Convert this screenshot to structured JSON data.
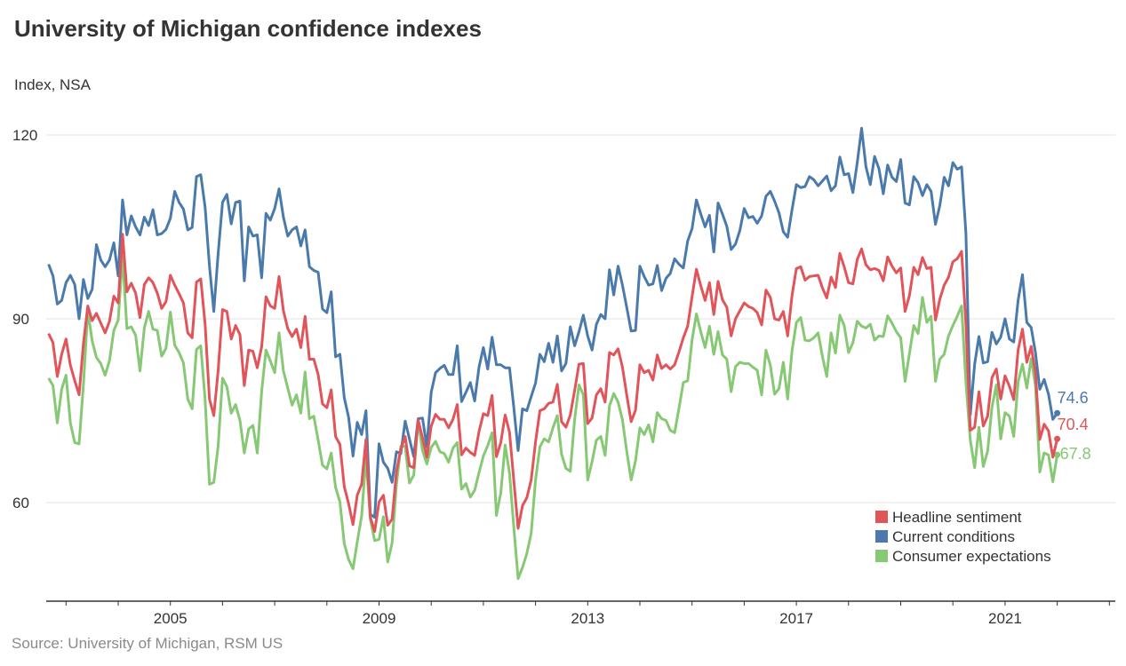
{
  "chart_data": {
    "type": "line",
    "title": "University of Michigan confidence indexes",
    "ylabel": "Index, NSA",
    "source": "Source: University of Michigan, RSM US",
    "ylim": [
      44,
      123
    ],
    "xlim": [
      2002.62,
      2023.1
    ],
    "y_ticks": [
      60,
      90,
      120
    ],
    "x_tick_labels": [
      "2005",
      "2009",
      "2013",
      "2017",
      "2021"
    ],
    "grid": "horizontal",
    "legend_position": "bottom-right",
    "x": [
      "2002-08",
      "2002-09",
      "2002-10",
      "2002-11",
      "2002-12",
      "2003-01",
      "2003-02",
      "2003-03",
      "2003-04",
      "2003-05",
      "2003-06",
      "2003-07",
      "2003-08",
      "2003-09",
      "2003-10",
      "2003-11",
      "2003-12",
      "2004-01",
      "2004-02",
      "2004-03",
      "2004-04",
      "2004-05",
      "2004-06",
      "2004-07",
      "2004-08",
      "2004-09",
      "2004-10",
      "2004-11",
      "2004-12",
      "2005-01",
      "2005-02",
      "2005-03",
      "2005-04",
      "2005-05",
      "2005-06",
      "2005-07",
      "2005-08",
      "2005-09",
      "2005-10",
      "2005-11",
      "2005-12",
      "2006-01",
      "2006-02",
      "2006-03",
      "2006-04",
      "2006-05",
      "2006-06",
      "2006-07",
      "2006-08",
      "2006-09",
      "2006-10",
      "2006-11",
      "2006-12",
      "2007-01",
      "2007-02",
      "2007-03",
      "2007-04",
      "2007-05",
      "2007-06",
      "2007-07",
      "2007-08",
      "2007-09",
      "2007-10",
      "2007-11",
      "2007-12",
      "2008-01",
      "2008-02",
      "2008-03",
      "2008-04",
      "2008-05",
      "2008-06",
      "2008-07",
      "2008-08",
      "2008-09",
      "2008-10",
      "2008-11",
      "2008-12",
      "2009-01",
      "2009-02",
      "2009-03",
      "2009-04",
      "2009-05",
      "2009-06",
      "2009-07",
      "2009-08",
      "2009-09",
      "2009-10",
      "2009-11",
      "2009-12",
      "2010-01",
      "2010-02",
      "2010-03",
      "2010-04",
      "2010-05",
      "2010-06",
      "2010-07",
      "2010-08",
      "2010-09",
      "2010-10",
      "2010-11",
      "2010-12",
      "2011-01",
      "2011-02",
      "2011-03",
      "2011-04",
      "2011-05",
      "2011-06",
      "2011-07",
      "2011-08",
      "2011-09",
      "2011-10",
      "2011-11",
      "2011-12",
      "2012-01",
      "2012-02",
      "2012-03",
      "2012-04",
      "2012-05",
      "2012-06",
      "2012-07",
      "2012-08",
      "2012-09",
      "2012-10",
      "2012-11",
      "2012-12",
      "2013-01",
      "2013-02",
      "2013-03",
      "2013-04",
      "2013-05",
      "2013-06",
      "2013-07",
      "2013-08",
      "2013-09",
      "2013-10",
      "2013-11",
      "2013-12",
      "2014-01",
      "2014-02",
      "2014-03",
      "2014-04",
      "2014-05",
      "2014-06",
      "2014-07",
      "2014-08",
      "2014-09",
      "2014-10",
      "2014-11",
      "2014-12",
      "2015-01",
      "2015-02",
      "2015-03",
      "2015-04",
      "2015-05",
      "2015-06",
      "2015-07",
      "2015-08",
      "2015-09",
      "2015-10",
      "2015-11",
      "2015-12",
      "2016-01",
      "2016-02",
      "2016-03",
      "2016-04",
      "2016-05",
      "2016-06",
      "2016-07",
      "2016-08",
      "2016-09",
      "2016-10",
      "2016-11",
      "2016-12",
      "2017-01",
      "2017-02",
      "2017-03",
      "2017-04",
      "2017-05",
      "2017-06",
      "2017-07",
      "2017-08",
      "2017-09",
      "2017-10",
      "2017-11",
      "2017-12",
      "2018-01",
      "2018-02",
      "2018-03",
      "2018-04",
      "2018-05",
      "2018-06",
      "2018-07",
      "2018-08",
      "2018-09",
      "2018-10",
      "2018-11",
      "2018-12",
      "2019-01",
      "2019-02",
      "2019-03",
      "2019-04",
      "2019-05",
      "2019-06",
      "2019-07",
      "2019-08",
      "2019-09",
      "2019-10",
      "2019-11",
      "2019-12",
      "2020-01",
      "2020-02",
      "2020-03",
      "2020-04",
      "2020-05",
      "2020-06",
      "2020-07",
      "2020-08",
      "2020-09",
      "2020-10",
      "2020-11",
      "2020-12",
      "2021-01",
      "2021-02",
      "2021-03",
      "2021-04",
      "2021-05",
      "2021-06",
      "2021-07",
      "2021-08",
      "2021-09",
      "2021-10",
      "2021-11",
      "2021-12"
    ],
    "series": [
      {
        "name": "Headline sentiment",
        "color": "#e0545a",
        "end_label": "70.4",
        "values": [
          87.6,
          86.1,
          80.6,
          84.2,
          86.7,
          82.4,
          79.9,
          77.6,
          86.0,
          92.1,
          89.7,
          90.9,
          89.3,
          87.7,
          89.6,
          93.7,
          92.6,
          103.8,
          94.4,
          95.8,
          94.2,
          90.2,
          95.6,
          96.7,
          95.9,
          94.2,
          91.7,
          92.8,
          97.1,
          95.5,
          94.1,
          92.6,
          87.7,
          86.9,
          96.0,
          96.5,
          89.1,
          76.9,
          74.2,
          81.6,
          91.5,
          91.2,
          86.7,
          88.9,
          87.4,
          79.1,
          84.9,
          84.7,
          82.0,
          85.4,
          93.6,
          92.1,
          91.7,
          96.9,
          91.3,
          88.4,
          87.1,
          88.3,
          85.3,
          90.4,
          83.4,
          83.4,
          80.9,
          76.1,
          75.5,
          78.4,
          70.8,
          69.5,
          62.6,
          59.8,
          56.4,
          61.2,
          63.0,
          70.3,
          57.6,
          55.3,
          60.1,
          61.2,
          56.3,
          57.3,
          65.1,
          68.7,
          70.8,
          66.0,
          65.7,
          73.5,
          70.6,
          67.4,
          72.5,
          74.4,
          73.6,
          73.6,
          72.2,
          73.6,
          76.0,
          67.8,
          68.9,
          68.2,
          67.7,
          71.6,
          74.5,
          74.2,
          77.5,
          67.5,
          69.8,
          74.3,
          71.5,
          63.7,
          55.8,
          59.5,
          60.8,
          63.7,
          69.9,
          75.0,
          75.3,
          76.2,
          76.4,
          79.3,
          73.2,
          72.3,
          74.3,
          78.3,
          82.6,
          82.7,
          72.9,
          73.8,
          77.6,
          78.6,
          76.4,
          84.5,
          84.1,
          85.1,
          82.1,
          77.5,
          73.2,
          75.1,
          82.5,
          81.2,
          81.6,
          80.0,
          84.1,
          81.9,
          82.5,
          81.8,
          82.5,
          84.6,
          86.9,
          88.8,
          93.6,
          98.1,
          95.4,
          93.0,
          95.9,
          90.7,
          96.1,
          93.1,
          91.9,
          87.2,
          90.0,
          91.3,
          92.6,
          92.0,
          91.7,
          91.0,
          89.0,
          94.7,
          93.5,
          90.0,
          89.8,
          91.2,
          87.2,
          93.8,
          98.2,
          98.5,
          96.3,
          96.9,
          97.0,
          97.1,
          95.0,
          93.4,
          96.8,
          95.1,
          100.7,
          98.5,
          95.9,
          95.7,
          99.7,
          101.4,
          98.8,
          98.0,
          98.2,
          97.9,
          96.2,
          100.1,
          98.6,
          97.5,
          98.3,
          91.2,
          93.8,
          98.4,
          97.2,
          100.0,
          98.2,
          98.4,
          89.8,
          93.2,
          95.5,
          96.8,
          99.3,
          99.8,
          101.0,
          89.1,
          71.8,
          72.3,
          78.1,
          72.5,
          74.1,
          80.4,
          81.8,
          76.9,
          80.7,
          79.0,
          76.8,
          84.9,
          88.3,
          82.9,
          85.5,
          81.2,
          70.3,
          72.8,
          71.7,
          67.4,
          70.4
        ]
      },
      {
        "name": "Current conditions",
        "color": "#4a7aab",
        "end_label": "74.6",
        "values": [
          98.9,
          97.0,
          92.4,
          93.0,
          95.9,
          97.1,
          95.6,
          90.0,
          96.4,
          93.3,
          94.8,
          102.1,
          99.6,
          98.5,
          99.6,
          102.4,
          97.0,
          109.4,
          103.7,
          106.8,
          105.0,
          103.7,
          106.6,
          105.2,
          107.8,
          103.7,
          103.9,
          104.6,
          106.4,
          110.8,
          109.0,
          107.9,
          104.5,
          104.9,
          113.2,
          113.5,
          108.2,
          98.6,
          91.2,
          100.7,
          109.0,
          110.3,
          105.5,
          109.0,
          109.2,
          96.2,
          105.0,
          103.5,
          103.7,
          96.7,
          107.2,
          106.1,
          108.0,
          111.2,
          106.6,
          103.5,
          104.5,
          105.0,
          101.9,
          104.5,
          98.5,
          97.9,
          97.6,
          91.6,
          91.0,
          94.4,
          83.8,
          84.2,
          77.1,
          73.9,
          67.6,
          73.1,
          71.1,
          75.0,
          58.1,
          57.6,
          69.6,
          66.6,
          65.6,
          63.3,
          68.3,
          68.0,
          73.3,
          70.4,
          67.5,
          73.7,
          73.8,
          69.1,
          78.0,
          81.2,
          81.9,
          82.4,
          80.9,
          80.9,
          85.6,
          76.5,
          78.0,
          79.6,
          76.6,
          82.1,
          85.3,
          81.8,
          87.0,
          82.5,
          82.5,
          82.0,
          82.0,
          75.6,
          68.5,
          75.3,
          75.0,
          77.3,
          79.5,
          84.2,
          83.0,
          86.0,
          82.9,
          87.2,
          81.5,
          82.7,
          88.7,
          85.6,
          87.9,
          90.6,
          87.2,
          84.9,
          89.1,
          90.7,
          90.0,
          98.0,
          93.9,
          98.6,
          95.5,
          91.8,
          88.0,
          88.1,
          98.6,
          96.9,
          95.5,
          95.7,
          98.7,
          94.6,
          96.6,
          97.4,
          99.8,
          98.9,
          98.3,
          102.7,
          104.7,
          109.4,
          107.1,
          105.0,
          106.9,
          100.9,
          108.9,
          107.1,
          105.1,
          101.3,
          102.2,
          104.4,
          108.0,
          106.5,
          106.7,
          105.6,
          106.8,
          110.0,
          110.8,
          109.2,
          107.3,
          104.2,
          103.3,
          107.8,
          111.9,
          111.4,
          111.6,
          113.2,
          112.7,
          111.7,
          112.5,
          113.3,
          110.9,
          111.7,
          116.4,
          113.5,
          113.7,
          110.6,
          115.5,
          121.1,
          114.8,
          111.9,
          116.5,
          114.5,
          110.4,
          115.1,
          113.1,
          112.4,
          116.0,
          108.9,
          108.6,
          113.2,
          112.2,
          110.1,
          111.9,
          110.8,
          105.4,
          108.5,
          113.1,
          111.7,
          115.5,
          114.4,
          114.8,
          103.9,
          74.3,
          82.6,
          87.1,
          82.8,
          83.0,
          87.8,
          85.9,
          87.0,
          90.0,
          86.7,
          86.2,
          93.0,
          97.2,
          89.4,
          88.6,
          84.5,
          78.5,
          80.1,
          77.7,
          73.6,
          74.6
        ]
      },
      {
        "name": "Consumer expectations",
        "color": "#86c873",
        "end_label": "67.8",
        "values": [
          80.3,
          79.1,
          73.0,
          78.5,
          80.8,
          73.0,
          69.8,
          69.6,
          79.3,
          91.3,
          86.4,
          83.7,
          82.7,
          80.8,
          83.2,
          88.1,
          89.8,
          100.2,
          88.4,
          88.7,
          87.3,
          81.5,
          88.5,
          91.2,
          88.3,
          88.1,
          83.9,
          85.2,
          91.1,
          85.7,
          84.5,
          82.8,
          76.9,
          75.3,
          85.0,
          85.6,
          76.8,
          63.0,
          63.3,
          69.3,
          80.3,
          78.9,
          74.6,
          76.0,
          73.4,
          68.1,
          72.0,
          72.6,
          68.1,
          78.1,
          84.9,
          83.1,
          81.2,
          87.7,
          81.5,
          78.7,
          75.9,
          77.6,
          74.6,
          81.3,
          73.7,
          74.1,
          70.2,
          66.1,
          65.5,
          68.1,
          62.5,
          60.1,
          53.3,
          50.7,
          49.2,
          53.6,
          57.8,
          67.3,
          57.3,
          53.8,
          54.0,
          57.7,
          50.3,
          53.4,
          63.0,
          69.2,
          69.2,
          63.2,
          64.5,
          73.4,
          68.5,
          66.3,
          69.0,
          70.0,
          68.3,
          68.0,
          66.6,
          68.9,
          69.8,
          62.2,
          63.1,
          60.9,
          62.0,
          64.9,
          67.6,
          69.3,
          71.4,
          57.9,
          61.6,
          69.4,
          64.8,
          56.1,
          47.6,
          49.4,
          51.7,
          55.0,
          63.7,
          69.1,
          70.4,
          69.9,
          72.2,
          74.2,
          67.9,
          65.6,
          65.1,
          73.6,
          79.2,
          77.6,
          63.7,
          66.7,
          70.2,
          70.8,
          67.7,
          75.8,
          77.8,
          76.4,
          73.5,
          68.3,
          63.7,
          66.8,
          72.2,
          71.1,
          72.7,
          69.9,
          74.7,
          73.7,
          73.4,
          71.8,
          71.4,
          75.4,
          79.6,
          79.9,
          86.5,
          90.8,
          87.9,
          85.3,
          88.8,
          84.2,
          87.9,
          84.1,
          83.4,
          78.1,
          82.2,
          82.9,
          82.7,
          82.7,
          82.1,
          81.6,
          77.6,
          84.9,
          82.4,
          77.7,
          78.6,
          82.9,
          76.9,
          84.8,
          89.4,
          90.2,
          86.5,
          86.4,
          86.9,
          87.7,
          83.8,
          80.6,
          87.7,
          84.4,
          90.6,
          88.9,
          84.5,
          86.1,
          89.6,
          88.8,
          88.5,
          89.1,
          86.5,
          87.2,
          87.1,
          90.5,
          89.3,
          87.9,
          86.9,
          79.8,
          84.3,
          88.9,
          87.6,
          93.5,
          89.4,
          90.4,
          79.8,
          83.4,
          84.2,
          87.2,
          88.9,
          90.4,
          92.1,
          79.6,
          70.2,
          65.7,
          72.3,
          65.9,
          68.4,
          75.6,
          79.2,
          70.4,
          74.7,
          74.1,
          70.8,
          79.7,
          82.6,
          78.7,
          83.5,
          79.1,
          65.0,
          68.1,
          67.8,
          63.4,
          67.8
        ]
      }
    ]
  }
}
